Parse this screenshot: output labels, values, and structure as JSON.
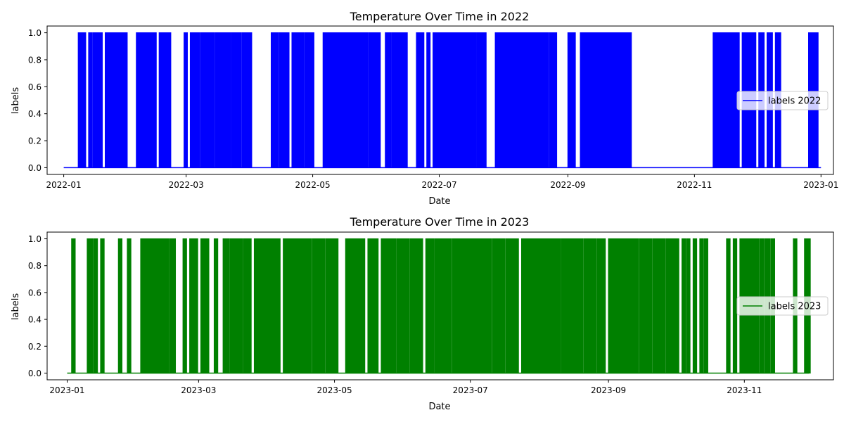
{
  "chart_data": [
    {
      "type": "line",
      "title": "Temperature Over Time in 2022",
      "xlabel": "Date",
      "ylabel": "labels",
      "color": "#0000ff",
      "x_range": [
        "2021-12-24",
        "2023-01-07"
      ],
      "ylim": [
        -0.05,
        1.05
      ],
      "x_ticks": [
        "2022-01",
        "2022-03",
        "2022-05",
        "2022-07",
        "2022-09",
        "2022-11",
        "2023-01"
      ],
      "y_ticks": [
        "0.0",
        "0.2",
        "0.4",
        "0.6",
        "0.8",
        "1.0"
      ],
      "legend": {
        "label": "labels 2022",
        "position": "center-right"
      },
      "series": [
        {
          "name": "labels 2022",
          "x_start": "2022-01-01",
          "x_end": "2023-01-01",
          "baseline": 0,
          "one_intervals": [
            [
              "2022-01-08",
              "2022-01-11"
            ],
            [
              "2022-01-13",
              "2022-01-14"
            ],
            [
              "2022-01-15",
              "2022-01-19"
            ],
            [
              "2022-01-21",
              "2022-01-27"
            ],
            [
              "2022-01-27",
              "2022-01-31"
            ],
            [
              "2022-02-05",
              "2022-02-14"
            ],
            [
              "2022-02-16",
              "2022-02-21"
            ],
            [
              "2022-02-28",
              "2022-03-01"
            ],
            [
              "2022-03-03",
              "2022-03-07"
            ],
            [
              "2022-03-08",
              "2022-03-14"
            ],
            [
              "2022-03-15",
              "2022-03-22"
            ],
            [
              "2022-03-23",
              "2022-03-27"
            ],
            [
              "2022-03-28",
              "2022-04-01"
            ],
            [
              "2022-04-11",
              "2022-04-14"
            ],
            [
              "2022-04-15",
              "2022-04-19"
            ],
            [
              "2022-04-21",
              "2022-04-26"
            ],
            [
              "2022-04-27",
              "2022-05-01"
            ],
            [
              "2022-05-06",
              "2022-05-13"
            ],
            [
              "2022-05-13",
              "2022-05-27"
            ],
            [
              "2022-05-28",
              "2022-06-02"
            ],
            [
              "2022-06-05",
              "2022-06-07"
            ],
            [
              "2022-06-08",
              "2022-06-11"
            ],
            [
              "2022-06-11",
              "2022-06-15"
            ],
            [
              "2022-06-20",
              "2022-06-23"
            ],
            [
              "2022-06-25",
              "2022-06-26"
            ],
            [
              "2022-06-28",
              "2022-07-02"
            ],
            [
              "2022-07-02",
              "2022-07-15"
            ],
            [
              "2022-07-15",
              "2022-07-18"
            ],
            [
              "2022-07-19",
              "2022-07-23"
            ],
            [
              "2022-07-28",
              "2022-08-01"
            ],
            [
              "2022-08-01",
              "2022-08-22"
            ],
            [
              "2022-08-23",
              "2022-08-26"
            ],
            [
              "2022-09-01",
              "2022-09-04"
            ],
            [
              "2022-09-07",
              "2022-09-11"
            ],
            [
              "2022-09-11",
              "2022-09-16"
            ],
            [
              "2022-09-16",
              "2022-09-20"
            ],
            [
              "2022-09-20",
              "2022-09-24"
            ],
            [
              "2022-09-24",
              "2022-09-27"
            ],
            [
              "2022-09-27",
              "2022-10-01"
            ],
            [
              "2022-11-10",
              "2022-11-22"
            ],
            [
              "2022-11-24",
              "2022-11-30"
            ],
            [
              "2022-12-02",
              "2022-12-04"
            ],
            [
              "2022-12-06",
              "2022-12-08"
            ],
            [
              "2022-12-10",
              "2022-12-12"
            ],
            [
              "2022-12-26",
              "2022-12-30"
            ]
          ]
        }
      ]
    },
    {
      "type": "line",
      "title": "Temperature Over Time in 2023",
      "xlabel": "Date",
      "ylabel": "labels",
      "color": "#008000",
      "x_range": [
        "2022-12-23",
        "2023-12-11"
      ],
      "ylim": [
        -0.05,
        1.05
      ],
      "x_ticks": [
        "2023-01",
        "2023-03",
        "2023-05",
        "2023-07",
        "2023-09",
        "2023-11"
      ],
      "y_ticks": [
        "0.0",
        "0.2",
        "0.4",
        "0.6",
        "0.8",
        "1.0"
      ],
      "legend": {
        "label": "labels 2023",
        "position": "center-right"
      },
      "series": [
        {
          "name": "labels 2023",
          "x_start": "2023-01-01",
          "x_end": "2023-11-30",
          "baseline": 0,
          "one_intervals": [
            [
              "2023-01-03",
              "2023-01-04"
            ],
            [
              "2023-01-10",
              "2023-01-12"
            ],
            [
              "2023-01-13",
              "2023-01-14"
            ],
            [
              "2023-01-16",
              "2023-01-17"
            ],
            [
              "2023-01-24",
              "2023-01-25"
            ],
            [
              "2023-01-28",
              "2023-01-29"
            ],
            [
              "2023-02-03",
              "2023-02-15"
            ],
            [
              "2023-02-16",
              "2023-02-18"
            ],
            [
              "2023-02-22",
              "2023-02-23"
            ],
            [
              "2023-02-25",
              "2023-02-28"
            ],
            [
              "2023-03-02",
              "2023-03-05"
            ],
            [
              "2023-03-08",
              "2023-03-09"
            ],
            [
              "2023-03-12",
              "2023-03-14"
            ],
            [
              "2023-03-15",
              "2023-03-20"
            ],
            [
              "2023-03-21",
              "2023-03-24"
            ],
            [
              "2023-03-26",
              "2023-04-06"
            ],
            [
              "2023-04-08",
              "2023-04-20"
            ],
            [
              "2023-04-21",
              "2023-04-26"
            ],
            [
              "2023-04-27",
              "2023-05-02"
            ],
            [
              "2023-05-06",
              "2023-05-14"
            ],
            [
              "2023-05-16",
              "2023-05-20"
            ],
            [
              "2023-05-22",
              "2023-05-28"
            ],
            [
              "2023-05-29",
              "2023-06-03"
            ],
            [
              "2023-06-04",
              "2023-06-09"
            ],
            [
              "2023-06-11",
              "2023-06-14"
            ],
            [
              "2023-06-15",
              "2023-06-22"
            ],
            [
              "2023-06-23",
              "2023-07-10"
            ],
            [
              "2023-07-11",
              "2023-07-16"
            ],
            [
              "2023-07-17",
              "2023-07-22"
            ],
            [
              "2023-07-24",
              "2023-08-10"
            ],
            [
              "2023-08-11",
              "2023-08-20"
            ],
            [
              "2023-08-21",
              "2023-08-26"
            ],
            [
              "2023-08-27",
              "2023-08-30"
            ],
            [
              "2023-09-01",
              "2023-09-14"
            ],
            [
              "2023-09-15",
              "2023-09-20"
            ],
            [
              "2023-09-21",
              "2023-09-26"
            ],
            [
              "2023-09-27",
              "2023-10-02"
            ],
            [
              "2023-10-04",
              "2023-10-05"
            ],
            [
              "2023-10-06",
              "2023-10-07"
            ],
            [
              "2023-10-09",
              "2023-10-10"
            ],
            [
              "2023-10-12",
              "2023-10-13"
            ],
            [
              "2023-10-14",
              "2023-10-15"
            ],
            [
              "2023-10-24",
              "2023-10-25"
            ],
            [
              "2023-10-27",
              "2023-10-28"
            ],
            [
              "2023-10-30",
              "2023-11-07"
            ],
            [
              "2023-11-08",
              "2023-11-09"
            ],
            [
              "2023-11-10",
              "2023-11-12"
            ],
            [
              "2023-11-13",
              "2023-11-14"
            ],
            [
              "2023-11-23",
              "2023-11-24"
            ],
            [
              "2023-11-28",
              "2023-11-30"
            ]
          ]
        }
      ]
    }
  ]
}
